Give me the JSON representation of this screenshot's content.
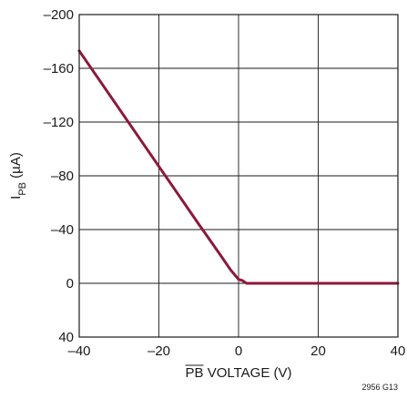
{
  "chart_data": {
    "type": "line",
    "xlabel": "PB VOLTAGE (V)",
    "xlabel_overline": "PB",
    "ylabel_main": "I",
    "ylabel_sub": "PB",
    "ylabel_unit": " (µA)",
    "xlim": [
      -40,
      40
    ],
    "ylim": [
      40,
      -200
    ],
    "y_inverted": true,
    "grid": true,
    "x_ticks": [
      -40,
      -20,
      0,
      20,
      40
    ],
    "x_tick_labels": [
      "–40",
      "–20",
      "0",
      "20",
      "40"
    ],
    "y_ticks": [
      -200,
      -160,
      -120,
      -80,
      -40,
      0,
      40
    ],
    "y_tick_labels": [
      "–200",
      "–160",
      "–120",
      "–80",
      "–40",
      "0",
      "40"
    ],
    "series": [
      {
        "color": "#8b1a3a",
        "x": [
          -40,
          -30,
          -20,
          -10,
          -5,
          -2,
          0,
          1,
          2,
          3,
          10,
          20,
          30,
          40
        ],
        "y": [
          -173,
          -130,
          -87,
          -44,
          -23,
          -10,
          -3,
          -2,
          0,
          0,
          0,
          0,
          0,
          0
        ]
      }
    ],
    "figure_id": "2956 G13"
  }
}
